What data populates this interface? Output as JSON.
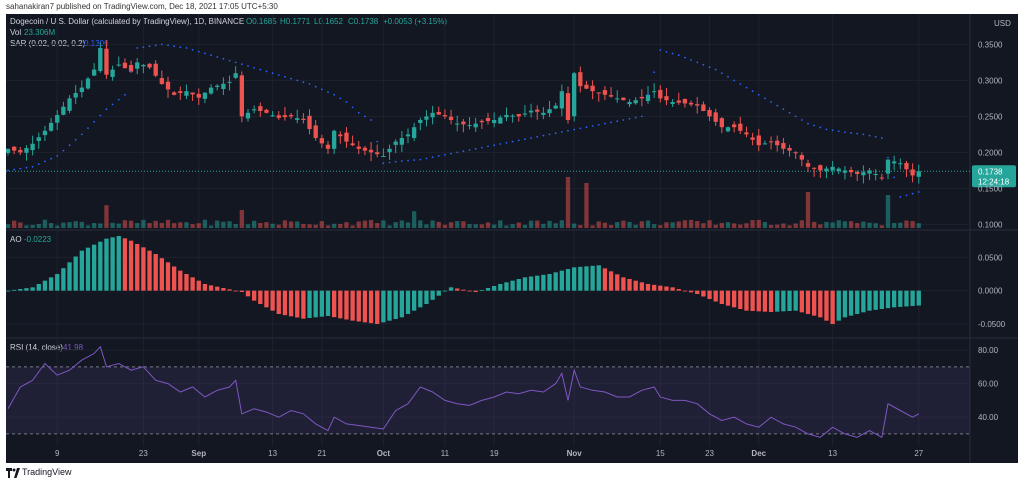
{
  "header": {
    "publisher": "sahanakiran7 published on TradingView.com, Dec 18, 2021 17:05 UTC+5:30"
  },
  "footer": {
    "brand": "TradingView"
  },
  "chart_data": {
    "type": "candlestick",
    "title": "Dogecoin / U.S. Dollar (calculated by TradingView), 1D, BINANCE",
    "currency_label": "USD",
    "ohlc_legend": {
      "open": "O0.1685",
      "high": "H0.1771",
      "low": "L0.1652",
      "close": "C0.1738",
      "change": "+0.0053 (+3.15%)"
    },
    "indicators": {
      "vol_label": "Vol",
      "vol_value": "23.306M",
      "sar_label": "SAR (0.02, 0.02, 0.2)",
      "sar_value": "0.1306",
      "ao_label": "AO",
      "ao_value": "-0.0223",
      "rsi_label": "RSI (14, close)",
      "rsi_value": "41.98"
    },
    "last_price": {
      "value": "0.1738",
      "countdown": "12:24:18"
    },
    "price_axis": {
      "ticks": [
        0.35,
        0.3,
        0.25,
        0.2,
        0.15,
        0.1
      ],
      "tick_labels": [
        "0.3500",
        "0.3000",
        "0.2500",
        "0.2000",
        "0.1500",
        "0.1000"
      ],
      "range": [
        0.095,
        0.37
      ]
    },
    "ao_axis": {
      "ticks": [
        0.05,
        0.0,
        -0.05
      ],
      "tick_labels": [
        "0.0500",
        "0.0000",
        "-0.0500"
      ],
      "range": [
        -0.068,
        0.088
      ]
    },
    "rsi_axis": {
      "ticks": [
        80,
        60,
        40
      ],
      "tick_labels": [
        "80.00",
        "60.00",
        "40.00"
      ],
      "bands": [
        30,
        70
      ],
      "range": [
        24,
        86
      ]
    },
    "x_axis": {
      "labels": [
        "9",
        "23",
        "Sep",
        "13",
        "21",
        "Oct",
        "11",
        "19",
        "Nov",
        "15",
        "23",
        "Dec",
        "13",
        "27"
      ],
      "label_days": [
        8,
        22,
        31,
        43,
        51,
        61,
        71,
        79,
        92,
        106,
        114,
        122,
        134,
        148
      ],
      "bold": [
        "Sep",
        "Oct",
        "Nov",
        "Dec"
      ],
      "range": [
        0,
        156
      ]
    },
    "price_path": [
      [
        0,
        0.205
      ],
      [
        2,
        0.2
      ],
      [
        4,
        0.212
      ],
      [
        6,
        0.23
      ],
      [
        8,
        0.252
      ],
      [
        10,
        0.275
      ],
      [
        12,
        0.29
      ],
      [
        14,
        0.315
      ],
      [
        15,
        0.345
      ],
      [
        16,
        0.308
      ],
      [
        18,
        0.322
      ],
      [
        20,
        0.312
      ],
      [
        21,
        0.325
      ],
      [
        23,
        0.318
      ],
      [
        25,
        0.295
      ],
      [
        27,
        0.28
      ],
      [
        29,
        0.285
      ],
      [
        31,
        0.276
      ],
      [
        33,
        0.29
      ],
      [
        36,
        0.298
      ],
      [
        37,
        0.31
      ],
      [
        38,
        0.25
      ],
      [
        40,
        0.26
      ],
      [
        42,
        0.255
      ],
      [
        44,
        0.248
      ],
      [
        46,
        0.25
      ],
      [
        48,
        0.245
      ],
      [
        50,
        0.22
      ],
      [
        52,
        0.205
      ],
      [
        53,
        0.23
      ],
      [
        55,
        0.215
      ],
      [
        57,
        0.205
      ],
      [
        59,
        0.2
      ],
      [
        61,
        0.195
      ],
      [
        63,
        0.215
      ],
      [
        65,
        0.225
      ],
      [
        67,
        0.245
      ],
      [
        69,
        0.255
      ],
      [
        71,
        0.25
      ],
      [
        73,
        0.24
      ],
      [
        75,
        0.238
      ],
      [
        77,
        0.242
      ],
      [
        79,
        0.245
      ],
      [
        81,
        0.252
      ],
      [
        83,
        0.25
      ],
      [
        85,
        0.258
      ],
      [
        87,
        0.255
      ],
      [
        89,
        0.265
      ],
      [
        90,
        0.285
      ],
      [
        91,
        0.245
      ],
      [
        92,
        0.31
      ],
      [
        93,
        0.292
      ],
      [
        95,
        0.285
      ],
      [
        97,
        0.28
      ],
      [
        99,
        0.275
      ],
      [
        101,
        0.27
      ],
      [
        103,
        0.275
      ],
      [
        105,
        0.285
      ],
      [
        106,
        0.275
      ],
      [
        108,
        0.27
      ],
      [
        110,
        0.268
      ],
      [
        112,
        0.265
      ],
      [
        114,
        0.25
      ],
      [
        116,
        0.235
      ],
      [
        118,
        0.235
      ],
      [
        120,
        0.225
      ],
      [
        122,
        0.21
      ],
      [
        124,
        0.215
      ],
      [
        126,
        0.205
      ],
      [
        128,
        0.2
      ],
      [
        130,
        0.18
      ],
      [
        132,
        0.175
      ],
      [
        134,
        0.18
      ],
      [
        136,
        0.175
      ],
      [
        138,
        0.17
      ],
      [
        140,
        0.175
      ],
      [
        142,
        0.165
      ],
      [
        143,
        0.19
      ],
      [
        145,
        0.185
      ],
      [
        147,
        0.168
      ],
      [
        148,
        0.1738
      ]
    ],
    "sar_path": [
      [
        0,
        0.175
      ],
      [
        4,
        0.18
      ],
      [
        8,
        0.195
      ],
      [
        12,
        0.225
      ],
      [
        16,
        0.26
      ],
      [
        19,
        0.28
      ],
      [
        21,
        0.345
      ],
      [
        25,
        0.35
      ],
      [
        29,
        0.345
      ],
      [
        33,
        0.335
      ],
      [
        37,
        0.325
      ],
      [
        41,
        0.315
      ],
      [
        45,
        0.305
      ],
      [
        49,
        0.295
      ],
      [
        53,
        0.28
      ],
      [
        55,
        0.27
      ],
      [
        57,
        0.255
      ],
      [
        59,
        0.245
      ],
      [
        61,
        0.185
      ],
      [
        64,
        0.188
      ],
      [
        67,
        0.19
      ],
      [
        70,
        0.195
      ],
      [
        73,
        0.2
      ],
      [
        76,
        0.205
      ],
      [
        79,
        0.21
      ],
      [
        82,
        0.215
      ],
      [
        85,
        0.22
      ],
      [
        88,
        0.225
      ],
      [
        91,
        0.23
      ],
      [
        94,
        0.235
      ],
      [
        97,
        0.24
      ],
      [
        100,
        0.245
      ],
      [
        103,
        0.25
      ],
      [
        106,
        0.342
      ],
      [
        109,
        0.335
      ],
      [
        112,
        0.325
      ],
      [
        115,
        0.315
      ],
      [
        118,
        0.3
      ],
      [
        121,
        0.285
      ],
      [
        124,
        0.27
      ],
      [
        127,
        0.255
      ],
      [
        130,
        0.24
      ],
      [
        133,
        0.232
      ],
      [
        136,
        0.228
      ],
      [
        139,
        0.225
      ],
      [
        142,
        0.22
      ],
      [
        145,
        0.138
      ],
      [
        148,
        0.145
      ]
    ],
    "volume_spikes": [
      [
        16,
        0.38
      ],
      [
        38,
        0.3
      ],
      [
        66,
        0.28
      ],
      [
        91,
        0.85
      ],
      [
        94,
        0.75
      ],
      [
        130,
        0.6
      ],
      [
        143,
        0.55
      ]
    ],
    "ao_path": [
      [
        0,
        0.0
      ],
      [
        4,
        0.005
      ],
      [
        8,
        0.025
      ],
      [
        12,
        0.06
      ],
      [
        16,
        0.078
      ],
      [
        18,
        0.082
      ],
      [
        20,
        0.075
      ],
      [
        24,
        0.055
      ],
      [
        28,
        0.03
      ],
      [
        32,
        0.01
      ],
      [
        36,
        0.002
      ],
      [
        38,
        -0.002
      ],
      [
        40,
        -0.015
      ],
      [
        44,
        -0.035
      ],
      [
        48,
        -0.042
      ],
      [
        52,
        -0.038
      ],
      [
        56,
        -0.045
      ],
      [
        60,
        -0.05
      ],
      [
        64,
        -0.04
      ],
      [
        68,
        -0.02
      ],
      [
        72,
        0.005
      ],
      [
        76,
        -0.002
      ],
      [
        80,
        0.01
      ],
      [
        84,
        0.02
      ],
      [
        88,
        0.025
      ],
      [
        92,
        0.035
      ],
      [
        96,
        0.038
      ],
      [
        100,
        0.02
      ],
      [
        104,
        0.01
      ],
      [
        108,
        0.005
      ],
      [
        112,
        -0.005
      ],
      [
        116,
        -0.02
      ],
      [
        120,
        -0.03
      ],
      [
        124,
        -0.032
      ],
      [
        128,
        -0.03
      ],
      [
        132,
        -0.04
      ],
      [
        134,
        -0.05
      ],
      [
        136,
        -0.04
      ],
      [
        140,
        -0.03
      ],
      [
        144,
        -0.025
      ],
      [
        148,
        -0.0223
      ]
    ],
    "rsi_path": [
      [
        0,
        45
      ],
      [
        2,
        58
      ],
      [
        4,
        62
      ],
      [
        6,
        72
      ],
      [
        8,
        65
      ],
      [
        10,
        68
      ],
      [
        12,
        74
      ],
      [
        14,
        78
      ],
      [
        15,
        82
      ],
      [
        16,
        70
      ],
      [
        18,
        72
      ],
      [
        20,
        68
      ],
      [
        22,
        70
      ],
      [
        24,
        62
      ],
      [
        26,
        60
      ],
      [
        28,
        55
      ],
      [
        30,
        58
      ],
      [
        32,
        52
      ],
      [
        34,
        56
      ],
      [
        36,
        58
      ],
      [
        37,
        62
      ],
      [
        38,
        42
      ],
      [
        40,
        45
      ],
      [
        42,
        43
      ],
      [
        44,
        40
      ],
      [
        46,
        44
      ],
      [
        48,
        42
      ],
      [
        50,
        36
      ],
      [
        52,
        32
      ],
      [
        53,
        40
      ],
      [
        55,
        36
      ],
      [
        57,
        35
      ],
      [
        59,
        34
      ],
      [
        61,
        33
      ],
      [
        63,
        44
      ],
      [
        65,
        48
      ],
      [
        67,
        58
      ],
      [
        69,
        55
      ],
      [
        71,
        50
      ],
      [
        73,
        48
      ],
      [
        75,
        47
      ],
      [
        77,
        50
      ],
      [
        79,
        52
      ],
      [
        81,
        55
      ],
      [
        83,
        54
      ],
      [
        85,
        56
      ],
      [
        87,
        55
      ],
      [
        89,
        60
      ],
      [
        90,
        66
      ],
      [
        91,
        50
      ],
      [
        92,
        68
      ],
      [
        93,
        58
      ],
      [
        95,
        56
      ],
      [
        97,
        55
      ],
      [
        99,
        52
      ],
      [
        101,
        52
      ],
      [
        103,
        56
      ],
      [
        105,
        58
      ],
      [
        106,
        52
      ],
      [
        108,
        50
      ],
      [
        110,
        50
      ],
      [
        112,
        48
      ],
      [
        114,
        42
      ],
      [
        116,
        38
      ],
      [
        118,
        40
      ],
      [
        120,
        36
      ],
      [
        122,
        34
      ],
      [
        124,
        40
      ],
      [
        126,
        36
      ],
      [
        128,
        34
      ],
      [
        130,
        30
      ],
      [
        132,
        28
      ],
      [
        134,
        34
      ],
      [
        136,
        30
      ],
      [
        138,
        28
      ],
      [
        140,
        32
      ],
      [
        142,
        28
      ],
      [
        143,
        48
      ],
      [
        145,
        44
      ],
      [
        147,
        40
      ],
      [
        148,
        41.98
      ]
    ],
    "colors": {
      "bg": "#131722",
      "up": "#26a69a",
      "down": "#ef5350",
      "sar": "#2962ff",
      "rsi": "#7e57c2",
      "rsi_band": "#7e57c2",
      "axis_text": "#b2b5be",
      "grid": "#1e222d",
      "separator": "#2a2e39"
    }
  }
}
